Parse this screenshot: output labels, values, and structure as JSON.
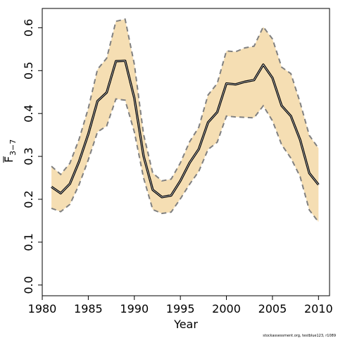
{
  "chart_data": {
    "type": "line",
    "xlabel": "Year",
    "ylabel": "F",
    "ylabel_sub": "3−7",
    "xlim": [
      1980.0,
      2011.2
    ],
    "ylim": [
      -0.025,
      0.645
    ],
    "xticks": [
      1980,
      1985,
      1990,
      1995,
      2000,
      2005,
      2010
    ],
    "yticks": [
      0.0,
      0.1,
      0.2,
      0.3,
      0.4,
      0.5,
      0.6
    ],
    "ytick_labels": [
      "0.0",
      "0.1",
      "0.2",
      "0.3",
      "0.4",
      "0.5",
      "0.6"
    ],
    "grid": false,
    "band_color": "#f5deb3",
    "x": [
      1981,
      1982,
      1983,
      1984,
      1985,
      1986,
      1987,
      1988,
      1989,
      1990,
      1991,
      1992,
      1993,
      1994,
      1995,
      1996,
      1997,
      1998,
      1999,
      2000,
      2001,
      2002,
      2003,
      2004,
      2005,
      2006,
      2007,
      2008,
      2009,
      2010
    ],
    "series": [
      {
        "role": "estimate",
        "style": "solid",
        "color": "#000000",
        "values": [
          0.229,
          0.214,
          0.236,
          0.288,
          0.352,
          0.429,
          0.449,
          0.522,
          0.523,
          0.436,
          0.301,
          0.222,
          0.205,
          0.209,
          0.243,
          0.285,
          0.317,
          0.379,
          0.403,
          0.47,
          0.468,
          0.474,
          0.478,
          0.514,
          0.483,
          0.418,
          0.394,
          0.339,
          0.261,
          0.234
        ]
      },
      {
        "role": "upper",
        "style": "dashed",
        "color": "#808080",
        "values": [
          0.277,
          0.258,
          0.284,
          0.34,
          0.412,
          0.503,
          0.529,
          0.615,
          0.62,
          0.515,
          0.352,
          0.261,
          0.243,
          0.247,
          0.285,
          0.334,
          0.368,
          0.443,
          0.47,
          0.546,
          0.544,
          0.553,
          0.557,
          0.602,
          0.574,
          0.508,
          0.493,
          0.426,
          0.349,
          0.319
        ]
      },
      {
        "role": "lower",
        "style": "dashed",
        "color": "#808080",
        "values": [
          0.179,
          0.171,
          0.188,
          0.234,
          0.292,
          0.357,
          0.371,
          0.434,
          0.431,
          0.357,
          0.25,
          0.176,
          0.167,
          0.17,
          0.201,
          0.235,
          0.265,
          0.316,
          0.333,
          0.394,
          0.392,
          0.391,
          0.39,
          0.418,
          0.383,
          0.327,
          0.296,
          0.253,
          0.175,
          0.147
        ]
      }
    ]
  },
  "credit": "stockassessment.org, testblue123, r1089"
}
